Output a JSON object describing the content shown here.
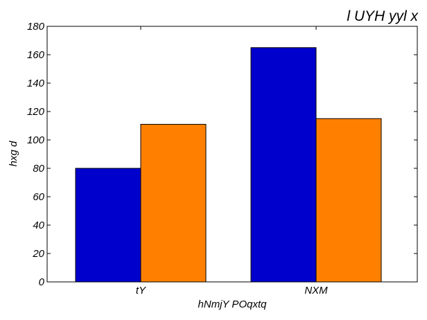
{
  "chart_data": {
    "type": "bar",
    "title": "l UYH yyl x",
    "xlabel": "hNmjY POqxtq",
    "ylabel": "hxg d",
    "categories": [
      "tY",
      "NXM"
    ],
    "series": [
      {
        "values": [
          80,
          165
        ],
        "color": "#0000cc"
      },
      {
        "values": [
          111,
          115
        ],
        "color": "#ff8000"
      }
    ],
    "ylim": [
      0,
      180
    ],
    "yticks": [
      0,
      20,
      40,
      60,
      80,
      100,
      120,
      140,
      160,
      180
    ],
    "grid": false,
    "legend": "none"
  }
}
